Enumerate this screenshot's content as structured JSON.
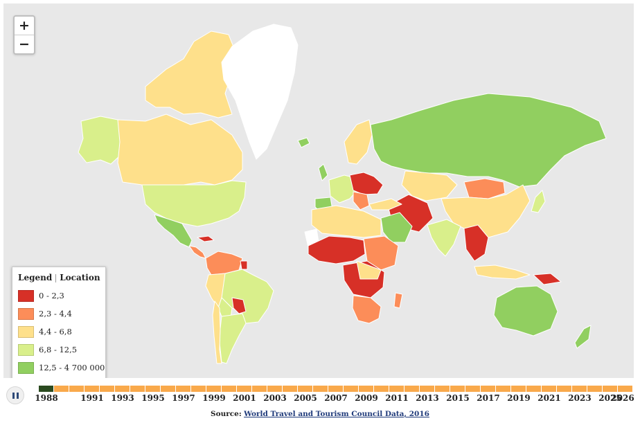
{
  "zoom": {
    "in_label": "+",
    "out_label": "−"
  },
  "legend": {
    "title": "Legend",
    "subtitle": "Location",
    "items": [
      {
        "label": "0 - 2,3",
        "color": "#d73027"
      },
      {
        "label": "2,3 - 4,4",
        "color": "#fc8d59"
      },
      {
        "label": "4,4 - 6,8",
        "color": "#fee08b"
      },
      {
        "label": "6,8 - 12,5",
        "color": "#d9ef8b"
      },
      {
        "label": "12,5 - 4 700 000",
        "color": "#91cf60"
      }
    ]
  },
  "colors": {
    "ocean": "#e8e8e8",
    "no_data": "#ffffff",
    "border": "#ffffff",
    "track": "#f9a94b",
    "track_active": "#2a4a1f"
  },
  "timeline": {
    "play_state": "pause",
    "active_year": "1988",
    "years": [
      "1988",
      "1991",
      "1993",
      "1995",
      "1997",
      "1999",
      "2001",
      "2003",
      "2005",
      "2007",
      "2009",
      "2011",
      "2013",
      "2015",
      "2017",
      "2019",
      "2021",
      "2023",
      "2025",
      "2026"
    ]
  },
  "source": {
    "prefix": "Source:",
    "link_text": "World Travel and Tourism Council Data, 2016"
  }
}
